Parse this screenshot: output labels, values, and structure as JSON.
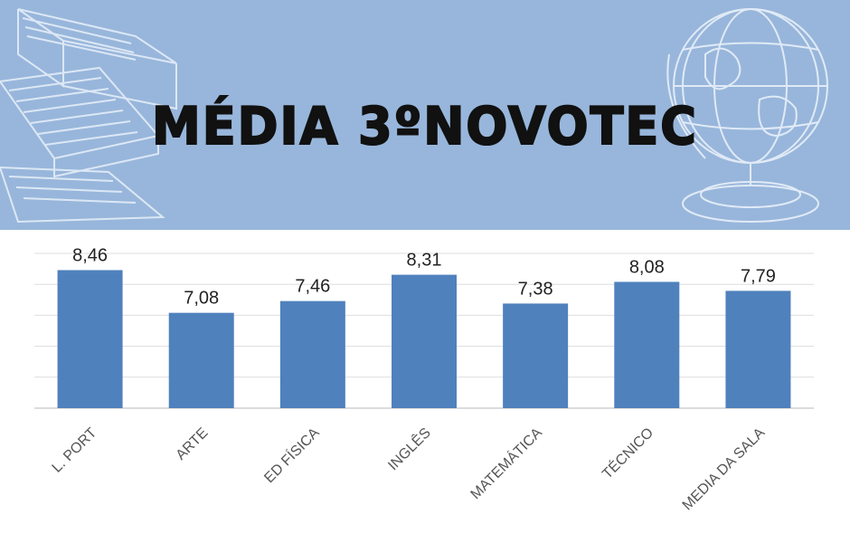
{
  "banner": {
    "title": "MÉDIA 3ºNOVOTEC",
    "background_color": "#98b6db",
    "decorations": [
      "books-illustration",
      "globe-illustration"
    ]
  },
  "chart_data": {
    "type": "bar",
    "title": "MÉDIA 3ºNOVOTEC",
    "categories": [
      "L. PORT",
      "ARTE",
      "ED FÍSICA",
      "INGLÊS",
      "MATEMÁTICA",
      "TÉCNICO",
      "MEDIA DA SALA"
    ],
    "values": [
      8.46,
      7.08,
      7.46,
      8.31,
      7.38,
      8.08,
      7.79
    ],
    "data_labels": [
      "8,46",
      "7,08",
      "7,46",
      "8,31",
      "7,38",
      "8,08",
      "7,79"
    ],
    "bar_color": "#4f81bd",
    "grid": true,
    "ylim": [
      4,
      9
    ],
    "xlabel": "",
    "ylabel": ""
  }
}
